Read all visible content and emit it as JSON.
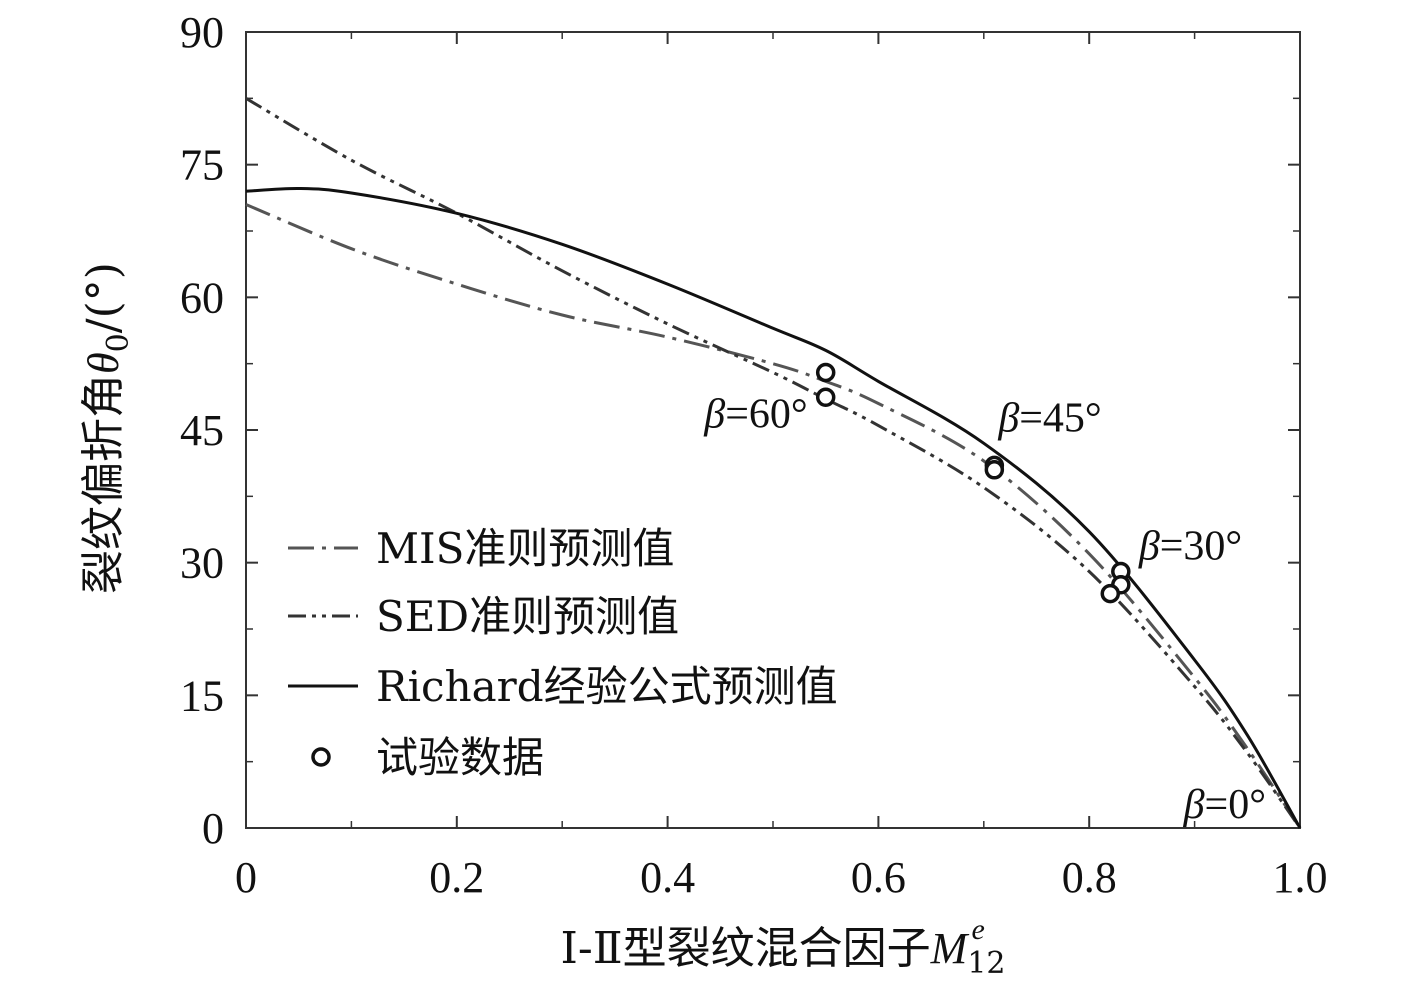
{
  "chart_data": {
    "type": "line",
    "xlabel_prefix": "Ⅰ-Ⅱ型裂纹混合因子",
    "xlabel_symbol": "M",
    "xlabel_sub": "12",
    "xlabel_sup": "e",
    "ylabel_prefix": "裂纹偏折角",
    "ylabel_symbol": "θ",
    "ylabel_sub": "0",
    "ylabel_suffix": "/(°)",
    "xlim": [
      0,
      1.0
    ],
    "ylim": [
      0,
      90
    ],
    "xticks": [
      0,
      0.2,
      0.4,
      0.6,
      0.8,
      1.0
    ],
    "xtick_labels": [
      "0",
      "0.2",
      "0.4",
      "0.6",
      "0.8",
      "1.0"
    ],
    "yticks": [
      0,
      15,
      30,
      45,
      60,
      75,
      90
    ],
    "ytick_labels": [
      "0",
      "15",
      "30",
      "45",
      "60",
      "75",
      "90"
    ],
    "grid": false,
    "legend_position": "lower-left",
    "series": [
      {
        "name": "MIS准则预测值",
        "style": "dash-dot",
        "color": "#555555",
        "x": [
          0,
          0.1,
          0.2,
          0.3,
          0.4,
          0.5,
          0.55,
          0.6,
          0.7,
          0.8,
          0.9,
          0.95,
          1.0
        ],
        "y": [
          70.5,
          65.5,
          61.5,
          58.0,
          55.5,
          52.5,
          50.5,
          48.0,
          41.5,
          31.0,
          17.0,
          9.0,
          0
        ]
      },
      {
        "name": "SED准则预测值",
        "style": "dash-dot-dot",
        "color": "#333333",
        "x": [
          0,
          0.1,
          0.2,
          0.3,
          0.4,
          0.5,
          0.55,
          0.6,
          0.7,
          0.8,
          0.9,
          0.95,
          1.0
        ],
        "y": [
          82.5,
          75.5,
          69.5,
          63.0,
          57.0,
          51.5,
          48.5,
          45.5,
          38.5,
          29.0,
          16.0,
          8.5,
          0
        ]
      },
      {
        "name": "Richard经验公式预测值",
        "style": "solid",
        "color": "#111111",
        "x": [
          0,
          0.05,
          0.1,
          0.2,
          0.3,
          0.4,
          0.5,
          0.55,
          0.6,
          0.7,
          0.8,
          0.9,
          0.95,
          1.0
        ],
        "y": [
          72.0,
          72.3,
          71.8,
          69.5,
          66.0,
          61.5,
          56.5,
          54.0,
          50.5,
          43.5,
          33.5,
          19.0,
          10.5,
          0
        ]
      },
      {
        "name": "试验数据",
        "style": "markers",
        "color": "#111111",
        "points": [
          [
            0.55,
            51.5
          ],
          [
            0.55,
            48.7
          ],
          [
            0.71,
            41.0
          ],
          [
            0.71,
            40.5
          ],
          [
            0.83,
            29.0
          ],
          [
            0.83,
            27.5
          ],
          [
            0.82,
            26.5
          ]
        ]
      }
    ],
    "annotations": [
      {
        "symbol": "β",
        "text": "=60°",
        "x": 0.55,
        "y": 48.7,
        "anchor": "left"
      },
      {
        "symbol": "β",
        "text": "=45°",
        "x": 0.71,
        "y": 41.0,
        "anchor": "above-right"
      },
      {
        "symbol": "β",
        "text": "=30°",
        "x": 0.83,
        "y": 29.0,
        "anchor": "right"
      },
      {
        "symbol": "β",
        "text": "=0°",
        "x": 1.0,
        "y": 0,
        "anchor": "above-left"
      }
    ]
  }
}
